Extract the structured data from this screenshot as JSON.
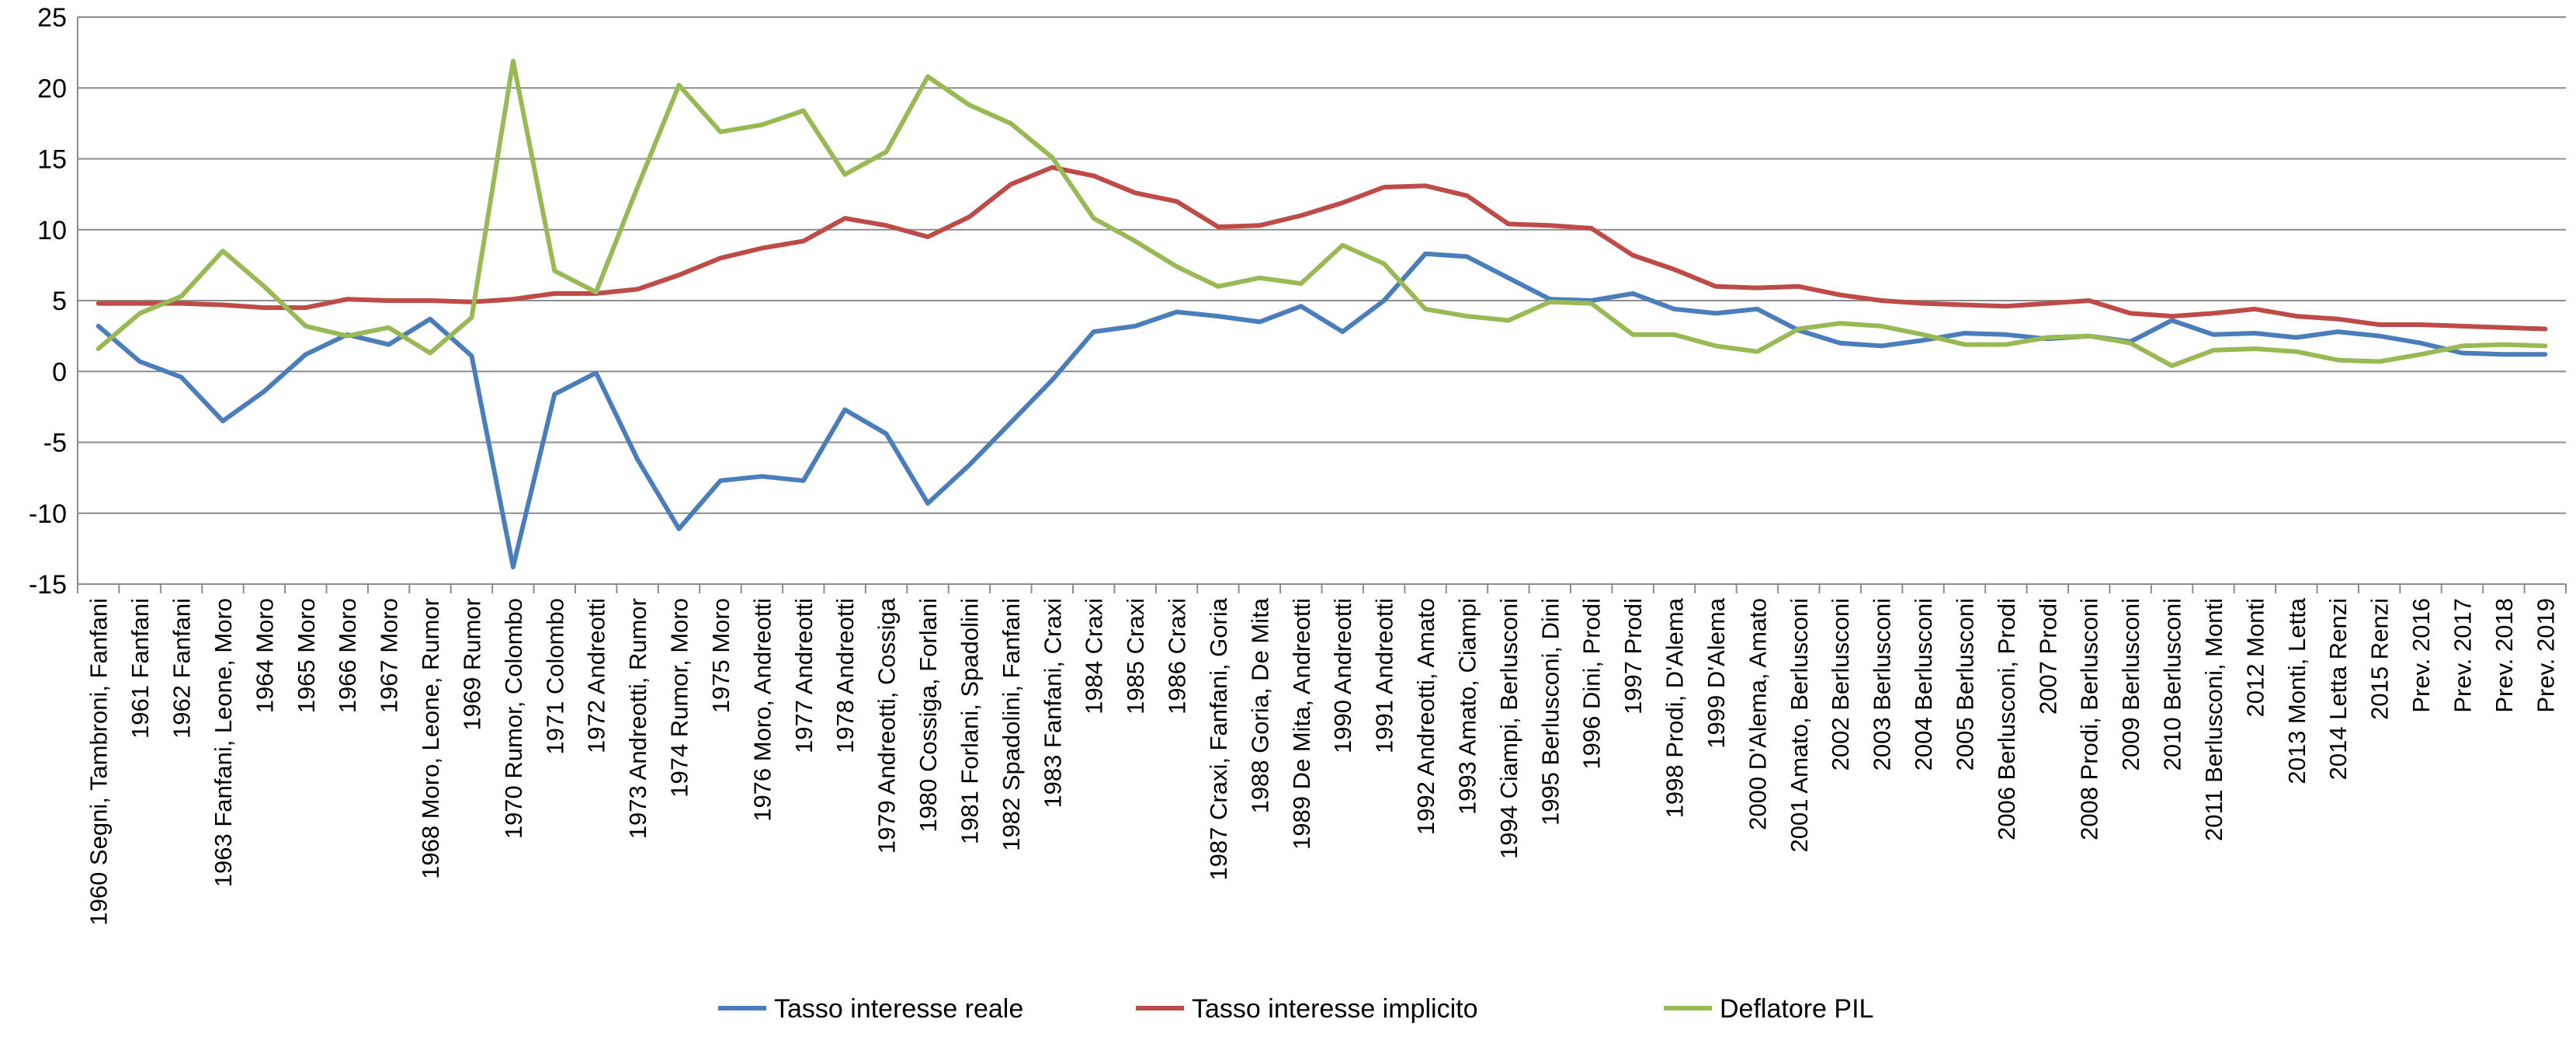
{
  "chart_data": {
    "type": "line",
    "title": "",
    "xlabel": "",
    "ylabel": "",
    "ylim": [
      -15,
      25
    ],
    "ytick_step": 5,
    "grid": true,
    "legend_position": "bottom",
    "categories": [
      "1960 Segni, Tambroni, Fanfani",
      "1961 Fanfani",
      "1962 Fanfani",
      "1963 Fanfani, Leone, Moro",
      "1964 Moro",
      "1965 Moro",
      "1966 Moro",
      "1967 Moro",
      "1968 Moro, Leone, Rumor",
      "1969 Rumor",
      "1970 Rumor, Colombo",
      "1971 Colombo",
      "1972 Andreotti",
      "1973 Andreotti, Rumor",
      "1974 Rumor, Moro",
      "1975 Moro",
      "1976 Moro, Andreotti",
      "1977 Andreotti",
      "1978 Andreotti",
      "1979 Andreotti, Cossiga",
      "1980 Cossiga, Forlani",
      "1981 Forlani, Spadolini",
      "1982 Spadolini, Fanfani",
      "1983 Fanfani, Craxi",
      "1984 Craxi",
      "1985 Craxi",
      "1986 Craxi",
      "1987 Craxi, Fanfani, Goria",
      "1988 Goria, De Mita",
      "1989 De Mita, Andreotti",
      "1990 Andreotti",
      "1991 Andreotti",
      "1992 Andreotti, Amato",
      "1993 Amato, Ciampi",
      "1994 Ciampi, Berlusconi",
      "1995 Berlusconi, Dini",
      "1996 Dini, Prodi",
      "1997 Prodi",
      "1998 Prodi, D'Alema",
      "1999 D'Alema",
      "2000 D'Alema, Amato",
      "2001 Amato, Berlusconi",
      "2002 Berlusconi",
      "2003 Berlusconi",
      "2004 Berlusconi",
      "2005 Berlusconi",
      "2006 Berlusconi, Prodi",
      "2007 Prodi",
      "2008 Prodi, Berlusconi",
      "2009 Berlusconi",
      "2010 Berlusconi",
      "2011 Berlusconi, Monti",
      "2012 Monti",
      "2013 Monti, Letta",
      "2014 Letta Renzi",
      "2015 Renzi",
      "Prev. 2016",
      "Prev. 2017",
      "Prev. 2018",
      "Prev. 2019"
    ],
    "series": [
      {
        "name": "Tasso interesse reale",
        "color": "#4a7ebb",
        "values": [
          3.2,
          0.7,
          -0.4,
          -3.5,
          -1.4,
          1.2,
          2.6,
          1.9,
          3.7,
          1.1,
          -13.8,
          -1.6,
          -0.1,
          -6.2,
          -11.1,
          -7.7,
          -7.4,
          -7.7,
          -2.7,
          -4.4,
          -9.3,
          -6.6,
          -3.6,
          -0.6,
          2.8,
          3.2,
          4.2,
          3.9,
          3.5,
          4.6,
          2.8,
          5.0,
          8.3,
          8.1,
          6.6,
          5.1,
          5.0,
          5.5,
          4.4,
          4.1,
          4.4,
          2.9,
          2.0,
          1.8,
          2.2,
          2.7,
          2.6,
          2.3,
          2.5,
          2.1,
          3.6,
          2.6,
          2.7,
          2.4,
          2.8,
          2.5,
          2.0,
          1.3,
          1.2,
          1.2
        ]
      },
      {
        "name": "Tasso interesse implicito",
        "color": "#be4b48",
        "values": [
          4.8,
          4.8,
          4.8,
          4.7,
          4.5,
          4.5,
          5.1,
          5.0,
          5.0,
          4.9,
          5.1,
          5.5,
          5.5,
          5.8,
          6.8,
          8.0,
          8.7,
          9.2,
          10.8,
          10.3,
          9.5,
          10.9,
          13.2,
          14.4,
          13.8,
          12.6,
          12.0,
          10.2,
          10.3,
          11.0,
          11.9,
          13.0,
          13.1,
          12.4,
          10.4,
          10.3,
          10.1,
          8.2,
          7.2,
          6.0,
          5.9,
          6.0,
          5.4,
          5.0,
          4.8,
          4.7,
          4.6,
          4.8,
          5.0,
          4.1,
          3.9,
          4.1,
          4.4,
          3.9,
          3.7,
          3.3,
          3.3,
          3.2,
          3.1,
          3.0
        ]
      },
      {
        "name": "Deflatore PIL",
        "color": "#98b954",
        "values": [
          1.6,
          4.1,
          5.3,
          8.5,
          6.0,
          3.2,
          2.5,
          3.1,
          1.3,
          3.8,
          21.9,
          7.1,
          5.6,
          13.0,
          20.2,
          16.9,
          17.4,
          18.4,
          13.9,
          15.5,
          20.8,
          18.8,
          17.5,
          15.1,
          10.8,
          9.2,
          7.4,
          6.0,
          6.6,
          6.2,
          8.9,
          7.6,
          4.4,
          3.9,
          3.6,
          4.9,
          4.8,
          2.6,
          2.6,
          1.8,
          1.4,
          3.0,
          3.4,
          3.2,
          2.6,
          1.9,
          1.9,
          2.4,
          2.5,
          2.0,
          0.4,
          1.5,
          1.6,
          1.4,
          0.8,
          0.7,
          1.2,
          1.8,
          1.9,
          1.8
        ]
      }
    ]
  }
}
